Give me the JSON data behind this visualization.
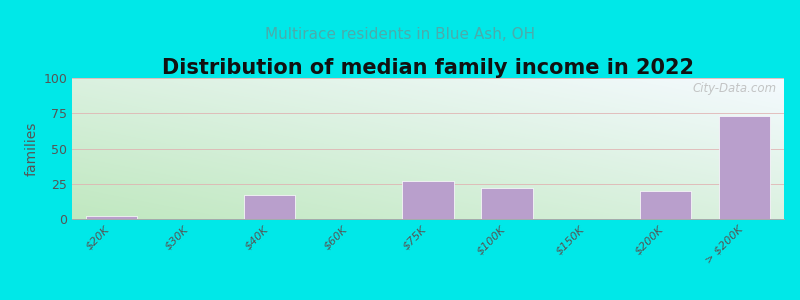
{
  "title": "Distribution of median family income in 2022",
  "subtitle": "Multirace residents in Blue Ash, OH",
  "categories": [
    "$20K",
    "$30K",
    "$40K",
    "$60K",
    "$75K",
    "$100K",
    "$150K",
    "$200K",
    "> $200K"
  ],
  "values": [
    2,
    0,
    17,
    0,
    27,
    22,
    0,
    20,
    73
  ],
  "bar_color": "#b99fcc",
  "ylabel": "families",
  "ylim": [
    0,
    100
  ],
  "yticks": [
    0,
    25,
    50,
    75,
    100
  ],
  "background_color": "#00e8e8",
  "plot_bg_bottom_left": "#c0e8c0",
  "plot_bg_top_right": "#f0f8ff",
  "grid_color": "#e0b0b0",
  "title_fontsize": 15,
  "subtitle_fontsize": 11,
  "watermark": "City-Data.com"
}
